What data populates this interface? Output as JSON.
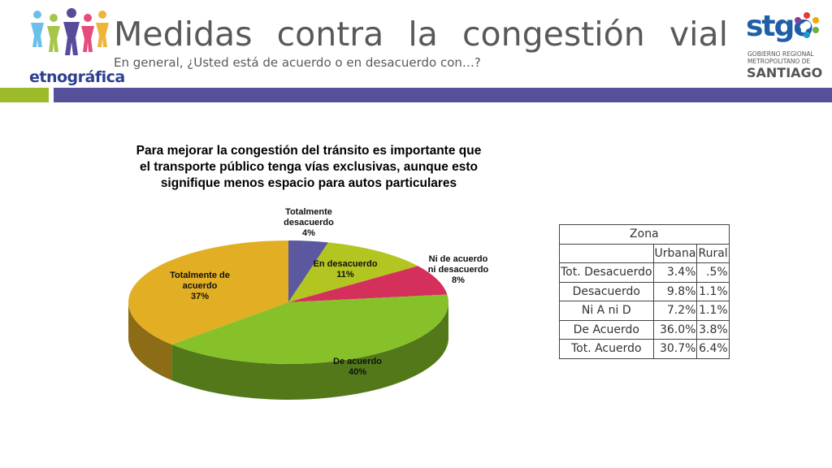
{
  "header": {
    "title": "Medidas contra la congestión vial",
    "subtitle": "En general, ¿Usted está de acuerdo o en desacuerdo con…?",
    "left_logo_text": "etnográfica",
    "right_logo": {
      "name": "stgo",
      "line1": "GOBIERNO REGIONAL",
      "line2": "METROPOLITANO DE",
      "line3": "SANTIAGO"
    }
  },
  "colors": {
    "title": "#595959",
    "bar_green": "#9bbb2a",
    "bar_blue": "#55509a"
  },
  "chart_data": {
    "type": "pie",
    "style": "3d",
    "title": "Para mejorar la congestión del tránsito es importante que el transporte público tenga vías exclusivas, aunque esto signifique menos espacio para autos particulares",
    "title_lines": [
      "Para mejorar la congestión del tránsito es importante que",
      "el transporte público tenga vías exclusivas, aunque esto",
      "signifique menos espacio para autos particulares"
    ],
    "slices": [
      {
        "label": "Totalmente desacuerdo",
        "label_lines": [
          "Totalmente",
          "desacuerdo"
        ],
        "value": 4,
        "value_label": "4%",
        "color": "#5b58a0"
      },
      {
        "label": "En desacuerdo",
        "label_lines": [
          "En desacuerdo"
        ],
        "value": 11,
        "value_label": "11%",
        "color": "#b3c520"
      },
      {
        "label": "Ni de acuerdo ni desacuerdo",
        "label_lines": [
          "Ni de acuerdo",
          "ni desacuerdo"
        ],
        "value": 8,
        "value_label": "8%",
        "color": "#d52f5b"
      },
      {
        "label": "De acuerdo",
        "label_lines": [
          "De acuerdo"
        ],
        "value": 40,
        "value_label": "40%",
        "color": "#86c12a"
      },
      {
        "label": "Totalmente de acuerdo",
        "label_lines": [
          "Totalmente de",
          "acuerdo"
        ],
        "value": 37,
        "value_label": "37%",
        "color": "#e2ae23"
      }
    ]
  },
  "zone_table": {
    "header": "Zona",
    "columns": [
      "Urbana",
      "Rural"
    ],
    "rows": [
      {
        "label": "Tot. Desacuerdo",
        "urbana": "3.4%",
        "rural": ".5%"
      },
      {
        "label": "Desacuerdo",
        "urbana": "9.8%",
        "rural": "1.1%"
      },
      {
        "label": "Ni A ni D",
        "urbana": "7.2%",
        "rural": "1.1%"
      },
      {
        "label": "De Acuerdo",
        "urbana": "36.0%",
        "rural": "3.8%"
      },
      {
        "label": "Tot. Acuerdo",
        "urbana": "30.7%",
        "rural": "6.4%"
      }
    ]
  }
}
